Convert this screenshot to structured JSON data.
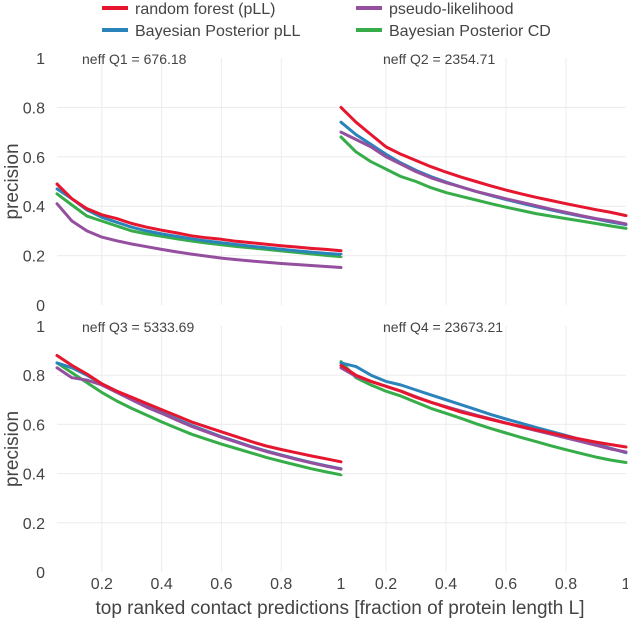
{
  "chart_data": {
    "type": "line",
    "legend": {
      "placement": "top",
      "entries": [
        {
          "name": "random forest (pLL)",
          "color": "#e6162e"
        },
        {
          "name": "pseudo-likelihood",
          "color": "#954f9f"
        },
        {
          "name": "Bayesian Posterior pLL",
          "color": "#2a84bb"
        },
        {
          "name": "Bayesian Posterior CD",
          "color": "#37ad4a"
        }
      ]
    },
    "xlabel": "top ranked contact predictions [fraction of protein length L]",
    "ylabel": "precision",
    "xlim": [
      0.05,
      1.0
    ],
    "ylim": [
      0,
      1
    ],
    "x_ticks": [
      "0.2",
      "0.4",
      "0.6",
      "0.8",
      "1"
    ],
    "y_ticks": [
      "0",
      "0.2",
      "0.4",
      "0.6",
      "0.8",
      "1"
    ],
    "grid": true,
    "x": [
      0.05,
      0.1,
      0.15,
      0.2,
      0.25,
      0.3,
      0.35,
      0.4,
      0.45,
      0.5,
      0.55,
      0.6,
      0.65,
      0.7,
      0.75,
      0.8,
      0.85,
      0.9,
      0.95,
      1.0
    ],
    "panels": [
      {
        "title": "neff  Q1 = 676.18",
        "series": [
          {
            "name": "random forest (pLL)",
            "values": [
              0.49,
              0.43,
              0.39,
              0.365,
              0.35,
              0.33,
              0.315,
              0.303,
              0.292,
              0.28,
              0.272,
              0.266,
              0.258,
              0.252,
              0.246,
              0.24,
              0.235,
              0.229,
              0.225,
              0.22
            ]
          },
          {
            "name": "pseudo-likelihood",
            "values": [
              0.41,
              0.34,
              0.3,
              0.275,
              0.26,
              0.247,
              0.236,
              0.225,
              0.215,
              0.206,
              0.198,
              0.19,
              0.184,
              0.178,
              0.173,
              0.168,
              0.164,
              0.16,
              0.156,
              0.152
            ]
          },
          {
            "name": "Bayesian Posterior pLL",
            "values": [
              0.47,
              0.43,
              0.385,
              0.355,
              0.335,
              0.315,
              0.3,
              0.288,
              0.278,
              0.268,
              0.259,
              0.252,
              0.245,
              0.238,
              0.232,
              0.226,
              0.22,
              0.214,
              0.209,
              0.205
            ]
          },
          {
            "name": "Bayesian Posterior CD",
            "values": [
              0.45,
              0.405,
              0.36,
              0.34,
              0.32,
              0.3,
              0.288,
              0.278,
              0.268,
              0.259,
              0.251,
              0.244,
              0.237,
              0.231,
              0.225,
              0.219,
              0.213,
              0.207,
              0.201,
              0.196
            ]
          }
        ]
      },
      {
        "title": "neff  Q2 = 2354.71",
        "series": [
          {
            "name": "random forest (pLL)",
            "values": [
              0.8,
              0.74,
              0.69,
              0.64,
              0.61,
              0.585,
              0.56,
              0.538,
              0.518,
              0.5,
              0.482,
              0.465,
              0.45,
              0.436,
              0.423,
              0.41,
              0.398,
              0.386,
              0.375,
              0.362
            ]
          },
          {
            "name": "pseudo-likelihood",
            "values": [
              0.7,
              0.67,
              0.64,
              0.6,
              0.57,
              0.54,
              0.515,
              0.495,
              0.478,
              0.46,
              0.445,
              0.43,
              0.416,
              0.402,
              0.388,
              0.375,
              0.362,
              0.35,
              0.34,
              0.328
            ]
          },
          {
            "name": "Bayesian Posterior pLL",
            "values": [
              0.74,
              0.69,
              0.65,
              0.61,
              0.575,
              0.545,
              0.52,
              0.498,
              0.478,
              0.46,
              0.443,
              0.427,
              0.412,
              0.398,
              0.385,
              0.372,
              0.36,
              0.348,
              0.336,
              0.325
            ]
          },
          {
            "name": "Bayesian Posterior CD",
            "values": [
              0.68,
              0.62,
              0.58,
              0.55,
              0.52,
              0.5,
              0.475,
              0.455,
              0.44,
              0.425,
              0.41,
              0.396,
              0.383,
              0.37,
              0.36,
              0.35,
              0.34,
              0.33,
              0.32,
              0.31
            ]
          }
        ]
      },
      {
        "title": "neff  Q3 = 5333.69",
        "series": [
          {
            "name": "random forest (pLL)",
            "values": [
              0.88,
              0.84,
              0.805,
              0.765,
              0.735,
              0.71,
              0.685,
              0.66,
              0.635,
              0.61,
              0.59,
              0.57,
              0.55,
              0.53,
              0.512,
              0.498,
              0.485,
              0.472,
              0.46,
              0.448
            ]
          },
          {
            "name": "pseudo-likelihood",
            "values": [
              0.83,
              0.79,
              0.78,
              0.76,
              0.73,
              0.7,
              0.67,
              0.645,
              0.618,
              0.592,
              0.57,
              0.548,
              0.528,
              0.508,
              0.49,
              0.474,
              0.458,
              0.444,
              0.43,
              0.418
            ]
          },
          {
            "name": "Bayesian Posterior pLL",
            "values": [
              0.85,
              0.83,
              0.8,
              0.765,
              0.735,
              0.705,
              0.675,
              0.648,
              0.622,
              0.596,
              0.573,
              0.55,
              0.53,
              0.51,
              0.492,
              0.476,
              0.46,
              0.445,
              0.432,
              0.42
            ]
          },
          {
            "name": "Bayesian Posterior CD",
            "values": [
              0.85,
              0.81,
              0.77,
              0.73,
              0.695,
              0.665,
              0.638,
              0.61,
              0.585,
              0.56,
              0.54,
              0.52,
              0.502,
              0.484,
              0.466,
              0.45,
              0.435,
              0.42,
              0.407,
              0.395
            ]
          }
        ]
      },
      {
        "title": "neff  Q4 = 23673.21",
        "series": [
          {
            "name": "random forest (pLL)",
            "values": [
              0.84,
              0.8,
              0.775,
              0.755,
              0.735,
              0.71,
              0.69,
              0.67,
              0.65,
              0.635,
              0.62,
              0.605,
              0.592,
              0.578,
              0.565,
              0.552,
              0.54,
              0.528,
              0.518,
              0.508
            ]
          },
          {
            "name": "pseudo-likelihood",
            "values": [
              0.83,
              0.795,
              0.775,
              0.755,
              0.735,
              0.712,
              0.69,
              0.672,
              0.655,
              0.638,
              0.622,
              0.606,
              0.59,
              0.575,
              0.56,
              0.545,
              0.53,
              0.515,
              0.5,
              0.488
            ]
          },
          {
            "name": "Bayesian Posterior pLL",
            "values": [
              0.85,
              0.835,
              0.8,
              0.775,
              0.76,
              0.74,
              0.72,
              0.7,
              0.68,
              0.66,
              0.64,
              0.622,
              0.605,
              0.588,
              0.571,
              0.555,
              0.538,
              0.52,
              0.502,
              0.485
            ]
          },
          {
            "name": "Bayesian Posterior CD",
            "values": [
              0.855,
              0.79,
              0.76,
              0.735,
              0.715,
              0.69,
              0.665,
              0.645,
              0.625,
              0.603,
              0.583,
              0.565,
              0.547,
              0.53,
              0.513,
              0.497,
              0.482,
              0.467,
              0.455,
              0.445
            ]
          }
        ]
      }
    ]
  }
}
